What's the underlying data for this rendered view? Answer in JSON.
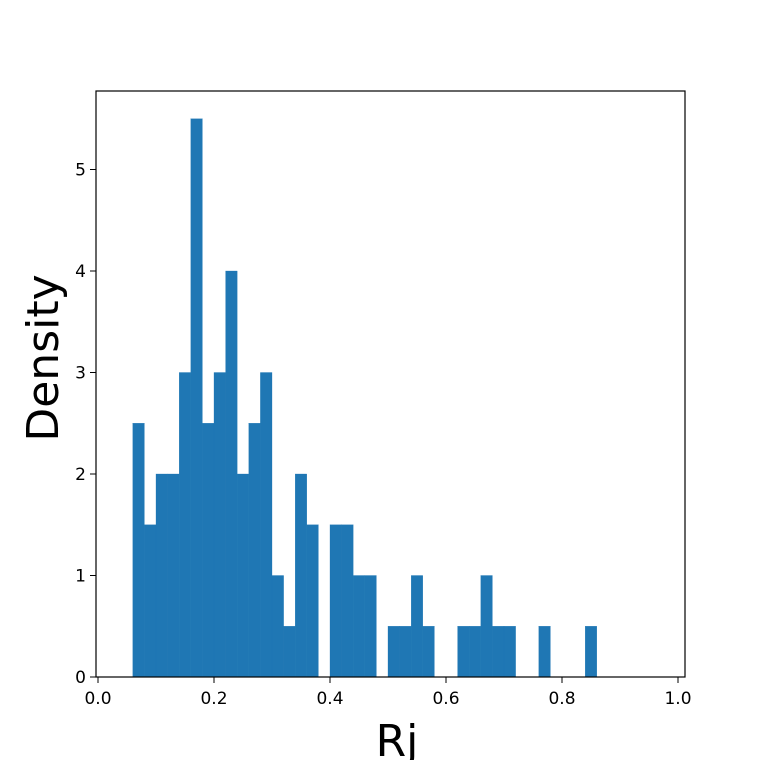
{
  "chart_data": {
    "type": "bar",
    "xlabel": "Rj",
    "ylabel": "Density",
    "xlim": [
      0.0,
      1.0
    ],
    "ylim": [
      0,
      5.5
    ],
    "bar_color": "#1f77b4",
    "bin_width": 0.02,
    "bins": [
      {
        "x0": 0.06,
        "value": 2.5
      },
      {
        "x0": 0.08,
        "value": 1.5
      },
      {
        "x0": 0.1,
        "value": 2.0
      },
      {
        "x0": 0.12,
        "value": 2.0
      },
      {
        "x0": 0.14,
        "value": 3.0
      },
      {
        "x0": 0.16,
        "value": 5.5
      },
      {
        "x0": 0.18,
        "value": 2.5
      },
      {
        "x0": 0.2,
        "value": 3.0
      },
      {
        "x0": 0.22,
        "value": 4.0
      },
      {
        "x0": 0.24,
        "value": 2.0
      },
      {
        "x0": 0.26,
        "value": 2.5
      },
      {
        "x0": 0.28,
        "value": 3.0
      },
      {
        "x0": 0.3,
        "value": 1.0
      },
      {
        "x0": 0.32,
        "value": 0.5
      },
      {
        "x0": 0.34,
        "value": 2.0
      },
      {
        "x0": 0.36,
        "value": 1.5
      },
      {
        "x0": 0.4,
        "value": 1.5
      },
      {
        "x0": 0.42,
        "value": 1.5
      },
      {
        "x0": 0.44,
        "value": 1.0
      },
      {
        "x0": 0.46,
        "value": 1.0
      },
      {
        "x0": 0.5,
        "value": 0.5
      },
      {
        "x0": 0.52,
        "value": 0.5
      },
      {
        "x0": 0.54,
        "value": 1.0
      },
      {
        "x0": 0.56,
        "value": 0.5
      },
      {
        "x0": 0.62,
        "value": 0.5
      },
      {
        "x0": 0.64,
        "value": 0.5
      },
      {
        "x0": 0.66,
        "value": 1.0
      },
      {
        "x0": 0.68,
        "value": 0.5
      },
      {
        "x0": 0.7,
        "value": 0.5
      },
      {
        "x0": 0.76,
        "value": 0.5
      },
      {
        "x0": 0.84,
        "value": 0.5
      }
    ],
    "xticks": [
      "0.0",
      "0.2",
      "0.4",
      "0.6",
      "0.8",
      "1.0"
    ],
    "yticks": [
      "0",
      "1",
      "2",
      "3",
      "4",
      "5"
    ]
  }
}
